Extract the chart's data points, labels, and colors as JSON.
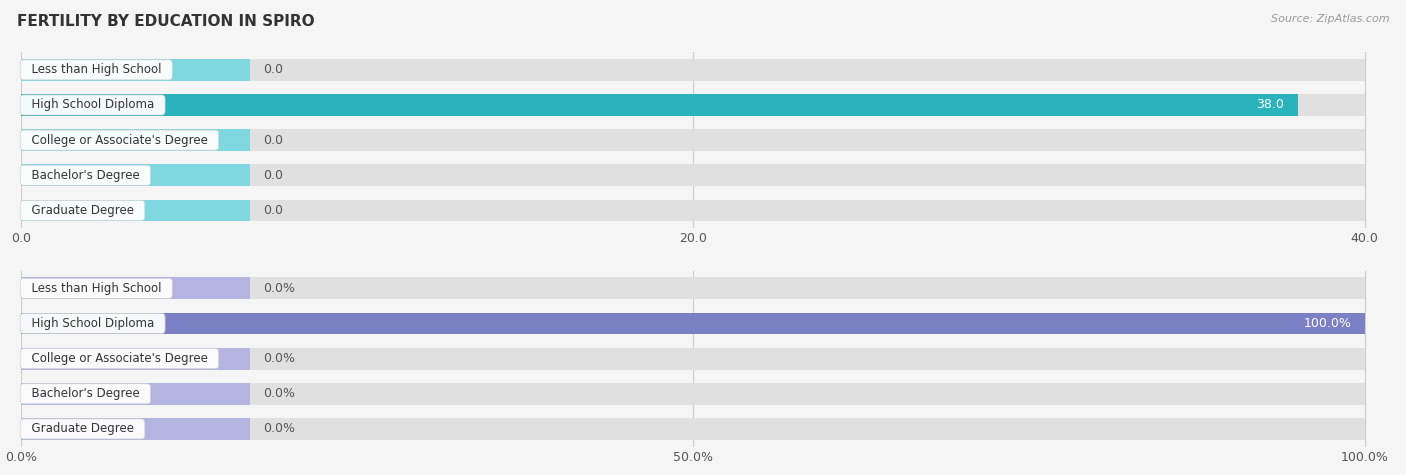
{
  "title": "FERTILITY BY EDUCATION IN SPIRO",
  "source": "Source: ZipAtlas.com",
  "categories": [
    "Less than High School",
    "High School Diploma",
    "College or Associate's Degree",
    "Bachelor's Degree",
    "Graduate Degree"
  ],
  "chart1": {
    "values": [
      0.0,
      38.0,
      0.0,
      0.0,
      0.0
    ],
    "xlim_max": 40.0,
    "xticks": [
      0.0,
      20.0,
      40.0
    ],
    "xtick_labels": [
      "0.0",
      "20.0",
      "40.0"
    ],
    "bar_color_active": "#2ab3bc",
    "bar_color_inactive": "#7fd8df",
    "label_color_inside": "#ffffff",
    "label_color_outside": "#555555",
    "is_percent": false
  },
  "chart2": {
    "values": [
      0.0,
      100.0,
      0.0,
      0.0,
      0.0
    ],
    "xlim_max": 100.0,
    "xticks": [
      0.0,
      50.0,
      100.0
    ],
    "xtick_labels": [
      "0.0%",
      "50.0%",
      "100.0%"
    ],
    "bar_color_active": "#7b7fc4",
    "bar_color_inactive": "#b3b5e0",
    "label_color_inside": "#ffffff",
    "label_color_outside": "#555555",
    "is_percent": true
  },
  "bg_color": "#f5f5f5",
  "bar_bg_color": "#e0e0e0",
  "bar_height": 0.62,
  "title_color": "#333333",
  "source_color": "#999999",
  "grid_color": "#cccccc",
  "text_fontsize": 9,
  "title_fontsize": 11,
  "label_text_color": "#555555",
  "cat_text_color": "#333333"
}
